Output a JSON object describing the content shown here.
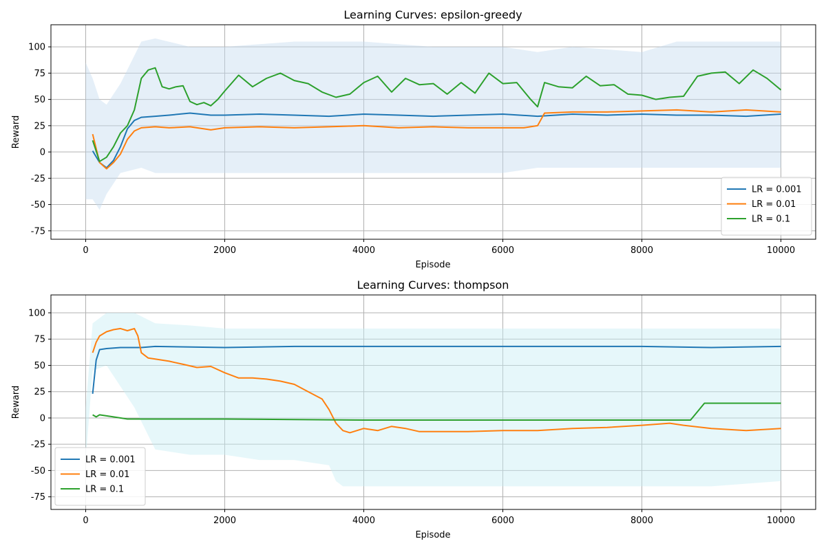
{
  "chart_data": [
    {
      "type": "line",
      "title": "Learning Curves: epsilon-greedy",
      "xlabel": "Episode",
      "ylabel": "Reward",
      "xlim": [
        -500,
        10500
      ],
      "ylim": [
        -83,
        121
      ],
      "xticks": [
        0,
        2000,
        4000,
        6000,
        8000,
        10000
      ],
      "yticks": [
        -75,
        -50,
        -25,
        0,
        25,
        50,
        75,
        100
      ],
      "grid": true,
      "legend_position": "lower-right",
      "band_color": "#c6dbef",
      "band": {
        "x": [
          0,
          100,
          200,
          300,
          500,
          800,
          1000,
          1500,
          2000,
          3000,
          4000,
          5000,
          6000,
          6500,
          7000,
          8000,
          8500,
          9000,
          10000
        ],
        "upper": [
          85,
          70,
          50,
          45,
          65,
          105,
          108,
          100,
          100,
          105,
          105,
          100,
          100,
          95,
          100,
          95,
          105,
          105,
          105
        ],
        "lower": [
          -45,
          -45,
          -55,
          -40,
          -20,
          -15,
          -20,
          -20,
          -20,
          -20,
          -20,
          -20,
          -20,
          -15,
          -15,
          -15,
          -15,
          -15,
          -15
        ]
      },
      "series": [
        {
          "name": "LR = 0.001",
          "color": "#1f77b4",
          "x": [
            100,
            200,
            300,
            400,
            500,
            600,
            700,
            800,
            1000,
            1200,
            1500,
            1800,
            2000,
            2500,
            3000,
            3500,
            4000,
            4500,
            5000,
            5500,
            6000,
            6500,
            7000,
            7500,
            8000,
            8500,
            9000,
            9500,
            10000
          ],
          "y": [
            1,
            -10,
            -15,
            -8,
            5,
            22,
            30,
            33,
            34,
            35,
            37,
            35,
            35,
            36,
            35,
            34,
            36,
            35,
            34,
            35,
            36,
            34,
            36,
            35,
            36,
            35,
            35,
            34,
            36
          ]
        },
        {
          "name": "LR = 0.01",
          "color": "#ff7f0e",
          "x": [
            100,
            200,
            300,
            400,
            500,
            600,
            700,
            800,
            1000,
            1200,
            1500,
            1800,
            2000,
            2500,
            3000,
            3500,
            4000,
            4500,
            5000,
            5500,
            6000,
            6300,
            6500,
            6600,
            7000,
            7500,
            8000,
            8500,
            9000,
            9500,
            10000
          ],
          "y": [
            17,
            -10,
            -16,
            -10,
            -2,
            12,
            20,
            23,
            24,
            23,
            24,
            21,
            23,
            24,
            23,
            24,
            25,
            23,
            24,
            23,
            23,
            23,
            25,
            37,
            38,
            38,
            39,
            40,
            38,
            40,
            38
          ]
        },
        {
          "name": "LR = 0.1",
          "color": "#2ca02c",
          "x": [
            100,
            200,
            300,
            400,
            500,
            600,
            700,
            800,
            900,
            1000,
            1100,
            1200,
            1300,
            1400,
            1500,
            1600,
            1700,
            1800,
            1900,
            2000,
            2200,
            2400,
            2600,
            2800,
            3000,
            3200,
            3400,
            3600,
            3800,
            4000,
            4200,
            4400,
            4600,
            4800,
            5000,
            5200,
            5400,
            5600,
            5800,
            6000,
            6200,
            6400,
            6500,
            6600,
            6800,
            7000,
            7200,
            7400,
            7600,
            7800,
            8000,
            8200,
            8400,
            8600,
            8800,
            9000,
            9200,
            9400,
            9600,
            9800,
            10000
          ],
          "y": [
            11,
            -9,
            -5,
            5,
            18,
            25,
            40,
            70,
            78,
            80,
            62,
            60,
            62,
            63,
            48,
            45,
            47,
            44,
            50,
            58,
            73,
            62,
            70,
            75,
            68,
            65,
            57,
            52,
            55,
            66,
            72,
            57,
            70,
            64,
            65,
            55,
            66,
            56,
            75,
            65,
            66,
            50,
            43,
            66,
            62,
            61,
            72,
            63,
            64,
            55,
            54,
            50,
            52,
            53,
            72,
            75,
            76,
            65,
            78,
            70,
            59
          ]
        }
      ]
    },
    {
      "type": "line",
      "title": "Learning Curves: thompson",
      "xlabel": "Episode",
      "ylabel": "Reward",
      "xlim": [
        -500,
        10500
      ],
      "ylim": [
        -87,
        117
      ],
      "xticks": [
        0,
        2000,
        4000,
        6000,
        8000,
        10000
      ],
      "yticks": [
        -75,
        -50,
        -25,
        0,
        25,
        50,
        75,
        100
      ],
      "grid": true,
      "legend_position": "lower-left",
      "band_color": "#c7eef5",
      "band": {
        "x": [
          0,
          100,
          300,
          700,
          1000,
          1500,
          2000,
          2500,
          3000,
          3500,
          3600,
          3700,
          4000,
          5000,
          6000,
          7000,
          8000,
          9000,
          10000
        ],
        "upper": [
          10,
          90,
          100,
          100,
          90,
          88,
          85,
          85,
          85,
          85,
          85,
          85,
          85,
          85,
          85,
          85,
          85,
          85,
          85
        ],
        "lower": [
          -40,
          45,
          50,
          10,
          -30,
          -35,
          -35,
          -40,
          -40,
          -45,
          -60,
          -65,
          -65,
          -65,
          -65,
          -65,
          -65,
          -65,
          -60
        ]
      },
      "series": [
        {
          "name": "LR = 0.001",
          "color": "#1f77b4",
          "x": [
            100,
            150,
            200,
            300,
            500,
            800,
            1000,
            2000,
            3000,
            4000,
            5000,
            6000,
            7000,
            8000,
            9000,
            10000
          ],
          "y": [
            23,
            55,
            65,
            66,
            67,
            67,
            68,
            67,
            68,
            68,
            68,
            68,
            68,
            68,
            67,
            68
          ],
          "series_note": ""
        },
        {
          "name": "LR = 0.01",
          "color": "#ff7f0e",
          "x": [
            100,
            150,
            200,
            300,
            400,
            500,
            600,
            700,
            750,
            800,
            900,
            1000,
            1200,
            1400,
            1600,
            1800,
            2000,
            2200,
            2400,
            2600,
            2800,
            3000,
            3200,
            3400,
            3500,
            3600,
            3700,
            3800,
            4000,
            4200,
            4400,
            4600,
            4800,
            5000,
            5500,
            6000,
            6500,
            7000,
            7500,
            8000,
            8400,
            8600,
            9000,
            9500,
            10000
          ],
          "y": [
            62,
            72,
            78,
            82,
            84,
            85,
            83,
            85,
            78,
            62,
            57,
            56,
            54,
            51,
            48,
            49,
            43,
            38,
            38,
            37,
            35,
            32,
            25,
            18,
            8,
            -5,
            -12,
            -14,
            -10,
            -12,
            -8,
            -10,
            -13,
            -13,
            -13,
            -12,
            -12,
            -10,
            -9,
            -7,
            -5,
            -7,
            -10,
            -12,
            -10
          ]
        },
        {
          "name": "LR = 0.1",
          "color": "#2ca02c",
          "x": [
            100,
            150,
            200,
            400,
            600,
            800,
            1000,
            2000,
            4000,
            6000,
            8000,
            8700,
            8900,
            9000,
            10000
          ],
          "y": [
            3,
            1,
            3,
            1,
            -1,
            -1,
            -1,
            -1,
            -2,
            -2,
            -2,
            -2,
            14,
            14,
            14
          ]
        }
      ]
    }
  ]
}
